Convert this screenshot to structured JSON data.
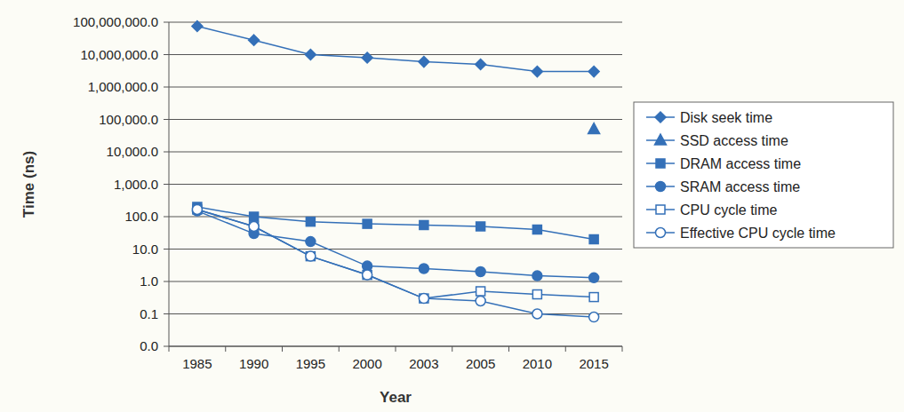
{
  "chart_data": {
    "type": "line",
    "x_label": "Year",
    "y_label": "Time (ns)",
    "categories": [
      "1985",
      "1990",
      "1995",
      "2000",
      "2003",
      "2005",
      "2010",
      "2015"
    ],
    "log": "y",
    "grid": true,
    "legend": "right",
    "ylim": [
      0.01,
      100000000
    ],
    "yticks": [
      {
        "value": 0.01,
        "label": "0.0"
      },
      0.1,
      {
        "value": 1,
        "label": "1.0"
      },
      {
        "value": 10,
        "label": "10.0"
      },
      {
        "value": 100,
        "label": "100.0"
      },
      {
        "value": 1000,
        "label": "1,000.0"
      },
      {
        "value": 10000,
        "label": "10,000.0"
      },
      {
        "value": 100000,
        "label": "100,000.0"
      },
      {
        "value": 1000000,
        "label": "1,000,000.0"
      },
      {
        "value": 10000000,
        "label": "10,000,000.0"
      },
      {
        "value": 100000000,
        "label": "100,000,000.0"
      }
    ],
    "series": [
      {
        "name": "Disk seek time",
        "color": "#3470b8",
        "marker": "diamond",
        "line_style": "solid",
        "values": [
          75000000,
          28000000,
          10000000,
          8000000,
          6000000,
          5000000,
          3000000,
          3000000
        ]
      },
      {
        "name": "SSD access time",
        "color": "#3470b8",
        "marker": "triangle",
        "line_style": "solid",
        "values": [
          null,
          null,
          null,
          null,
          null,
          null,
          null,
          50000
        ]
      },
      {
        "name": "DRAM access time",
        "color": "#3470b8",
        "marker": "square",
        "line_style": "solid",
        "values": [
          200,
          100,
          70,
          60,
          55,
          50,
          40,
          20
        ]
      },
      {
        "name": "SRAM access time",
        "color": "#3470b8",
        "marker": "circle",
        "line_style": "solid",
        "values": [
          150,
          30,
          17,
          3,
          2.5,
          2,
          1.5,
          1.3
        ]
      },
      {
        "name": "CPU cycle time",
        "color": "#3470b8",
        "marker": "square-open",
        "line_style": "solid",
        "values": [
          166,
          50,
          6,
          1.6,
          0.3,
          0.5,
          0.4,
          0.33
        ]
      },
      {
        "name": "Effective CPU cycle time",
        "color": "#3470b8",
        "marker": "circle-open",
        "line_style": "solid",
        "values": [
          166,
          50,
          6,
          1.6,
          0.3,
          0.25,
          0.1,
          0.08
        ]
      }
    ]
  }
}
